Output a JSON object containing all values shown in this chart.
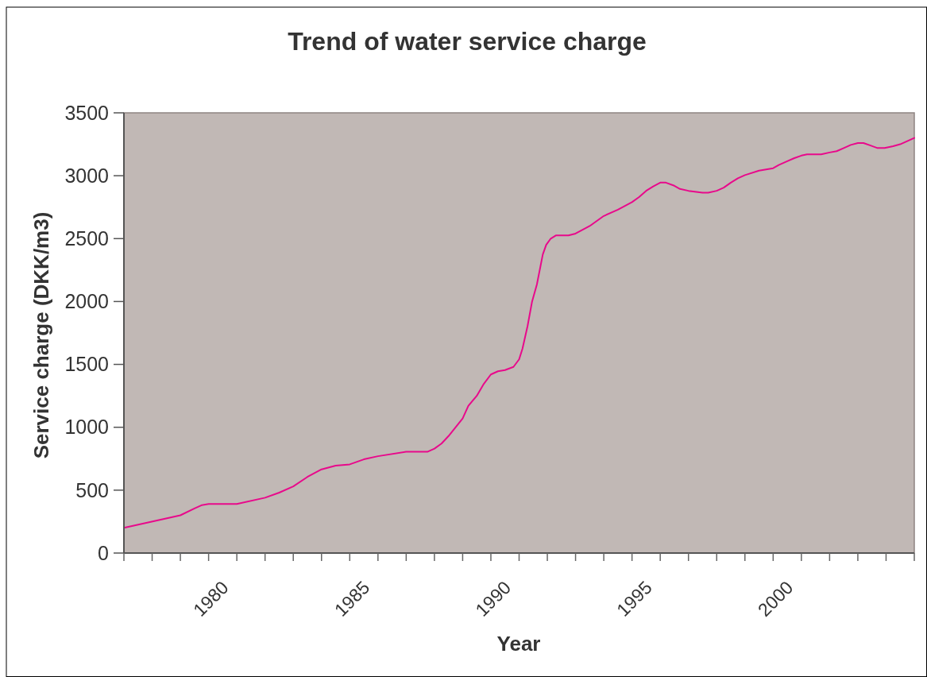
{
  "chart_data": {
    "type": "line",
    "title": "Trend of water service charge",
    "xlabel": "Year",
    "ylabel": "Service charge (DKK/m3)",
    "x": [
      1976,
      1978,
      1978.5,
      1978.75,
      1979,
      1980,
      1981,
      1981.5,
      1982,
      1982.5,
      1983,
      1983.5,
      1984,
      1984.5,
      1985,
      1986,
      1986.75,
      1987,
      1987.25,
      1987.5,
      1988,
      1988.2,
      1988.5,
      1988.75,
      1989,
      1989.25,
      1989.5,
      1989.8,
      1990,
      1990.12,
      1990.3,
      1990.46,
      1990.63,
      1990.84,
      1990.96,
      1991.12,
      1991.3,
      1991.75,
      1992,
      1992.5,
      1993,
      1993.5,
      1994,
      1994.25,
      1994.5,
      1994.75,
      1995,
      1995.2,
      1995.5,
      1995.7,
      1996,
      1996.5,
      1996.7,
      1997,
      1997.25,
      1997.5,
      1997.75,
      1998,
      1998.5,
      1999,
      1999.2,
      1999.5,
      1999.75,
      2000,
      2000.2,
      2000.7,
      2001,
      2001.25,
      2001.5,
      2001.75,
      2002,
      2002.2,
      2002.45,
      2002.7,
      2002.95,
      2003.25,
      2003.5,
      2004
    ],
    "series": [
      {
        "color": "#e8098b",
        "values": [
          200,
          300,
          355,
          380,
          390,
          390,
          440,
          480,
          530,
          605,
          665,
          695,
          705,
          745,
          770,
          805,
          805,
          830,
          870,
          930,
          1070,
          1170,
          1250,
          1345,
          1420,
          1445,
          1455,
          1480,
          1540,
          1625,
          1805,
          2000,
          2135,
          2375,
          2450,
          2500,
          2525,
          2525,
          2540,
          2600,
          2680,
          2730,
          2790,
          2830,
          2880,
          2915,
          2945,
          2945,
          2920,
          2895,
          2880,
          2865,
          2865,
          2880,
          2905,
          2945,
          2980,
          3005,
          3040,
          3060,
          3085,
          3115,
          3140,
          3160,
          3170,
          3170,
          3185,
          3195,
          3220,
          3245,
          3260,
          3260,
          3240,
          3220,
          3220,
          3235,
          3250,
          3300
        ]
      }
    ],
    "xlim": [
      1976,
      2004
    ],
    "xticks": [
      {
        "value": 1976,
        "label": null
      },
      {
        "value": 1977,
        "label": null
      },
      {
        "value": 1978,
        "label": null
      },
      {
        "value": 1979,
        "label": null
      },
      1980,
      {
        "value": 1981,
        "label": null
      },
      {
        "value": 1982,
        "label": null
      },
      {
        "value": 1983,
        "label": null
      },
      {
        "value": 1984,
        "label": null
      },
      1985,
      {
        "value": 1986,
        "label": null
      },
      {
        "value": 1987,
        "label": null
      },
      {
        "value": 1988,
        "label": null
      },
      {
        "value": 1989,
        "label": null
      },
      1990,
      {
        "value": 1991,
        "label": null
      },
      {
        "value": 1992,
        "label": null
      },
      {
        "value": 1993,
        "label": null
      },
      {
        "value": 1994,
        "label": null
      },
      1995,
      {
        "value": 1996,
        "label": null
      },
      {
        "value": 1997,
        "label": null
      },
      {
        "value": 1998,
        "label": null
      },
      {
        "value": 1999,
        "label": null
      },
      2000,
      {
        "value": 2001,
        "label": null
      },
      {
        "value": 2002,
        "label": null
      },
      {
        "value": 2003,
        "label": null
      },
      {
        "value": 2004,
        "label": null
      }
    ],
    "ylim": [
      0,
      3500
    ],
    "yticks": [
      0,
      500,
      1000,
      1500,
      2000,
      2500,
      3000,
      3500
    ]
  }
}
